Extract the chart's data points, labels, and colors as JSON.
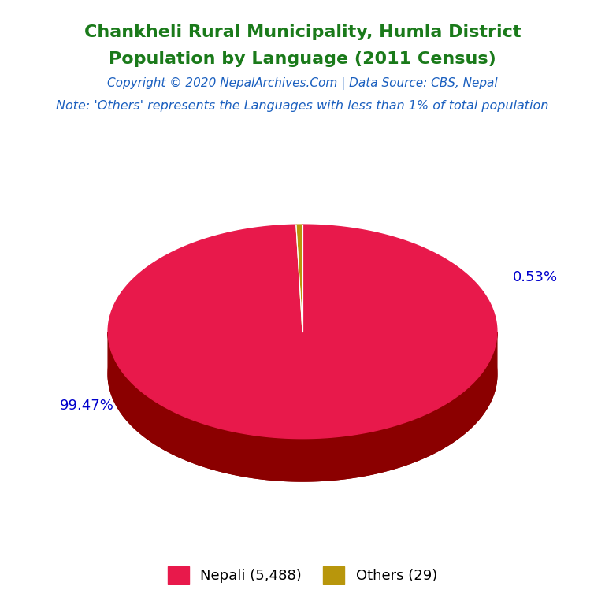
{
  "title_line1": "Chankheli Rural Municipality, Humla District",
  "title_line2": "Population by Language (2011 Census)",
  "title_color": "#1a7a1a",
  "copyright_text": "Copyright © 2020 NepalArchives.Com | Data Source: CBS, Nepal",
  "copyright_color": "#1a5fbf",
  "note_text": "Note: 'Others' represents the Languages with less than 1% of total population",
  "note_color": "#1a5fbf",
  "labels": [
    "Nepali (5,488)",
    "Others (29)"
  ],
  "values": [
    5488,
    29
  ],
  "percentages": [
    "99.47%",
    "0.53%"
  ],
  "colors": [
    "#e8194b",
    "#b8960c"
  ],
  "shadow_color": "#8b0000",
  "background_color": "#ffffff",
  "legend_text_color": "#000000",
  "label_color": "#0000cc",
  "title_fontsize": 16,
  "copyright_fontsize": 11,
  "note_fontsize": 11.5
}
